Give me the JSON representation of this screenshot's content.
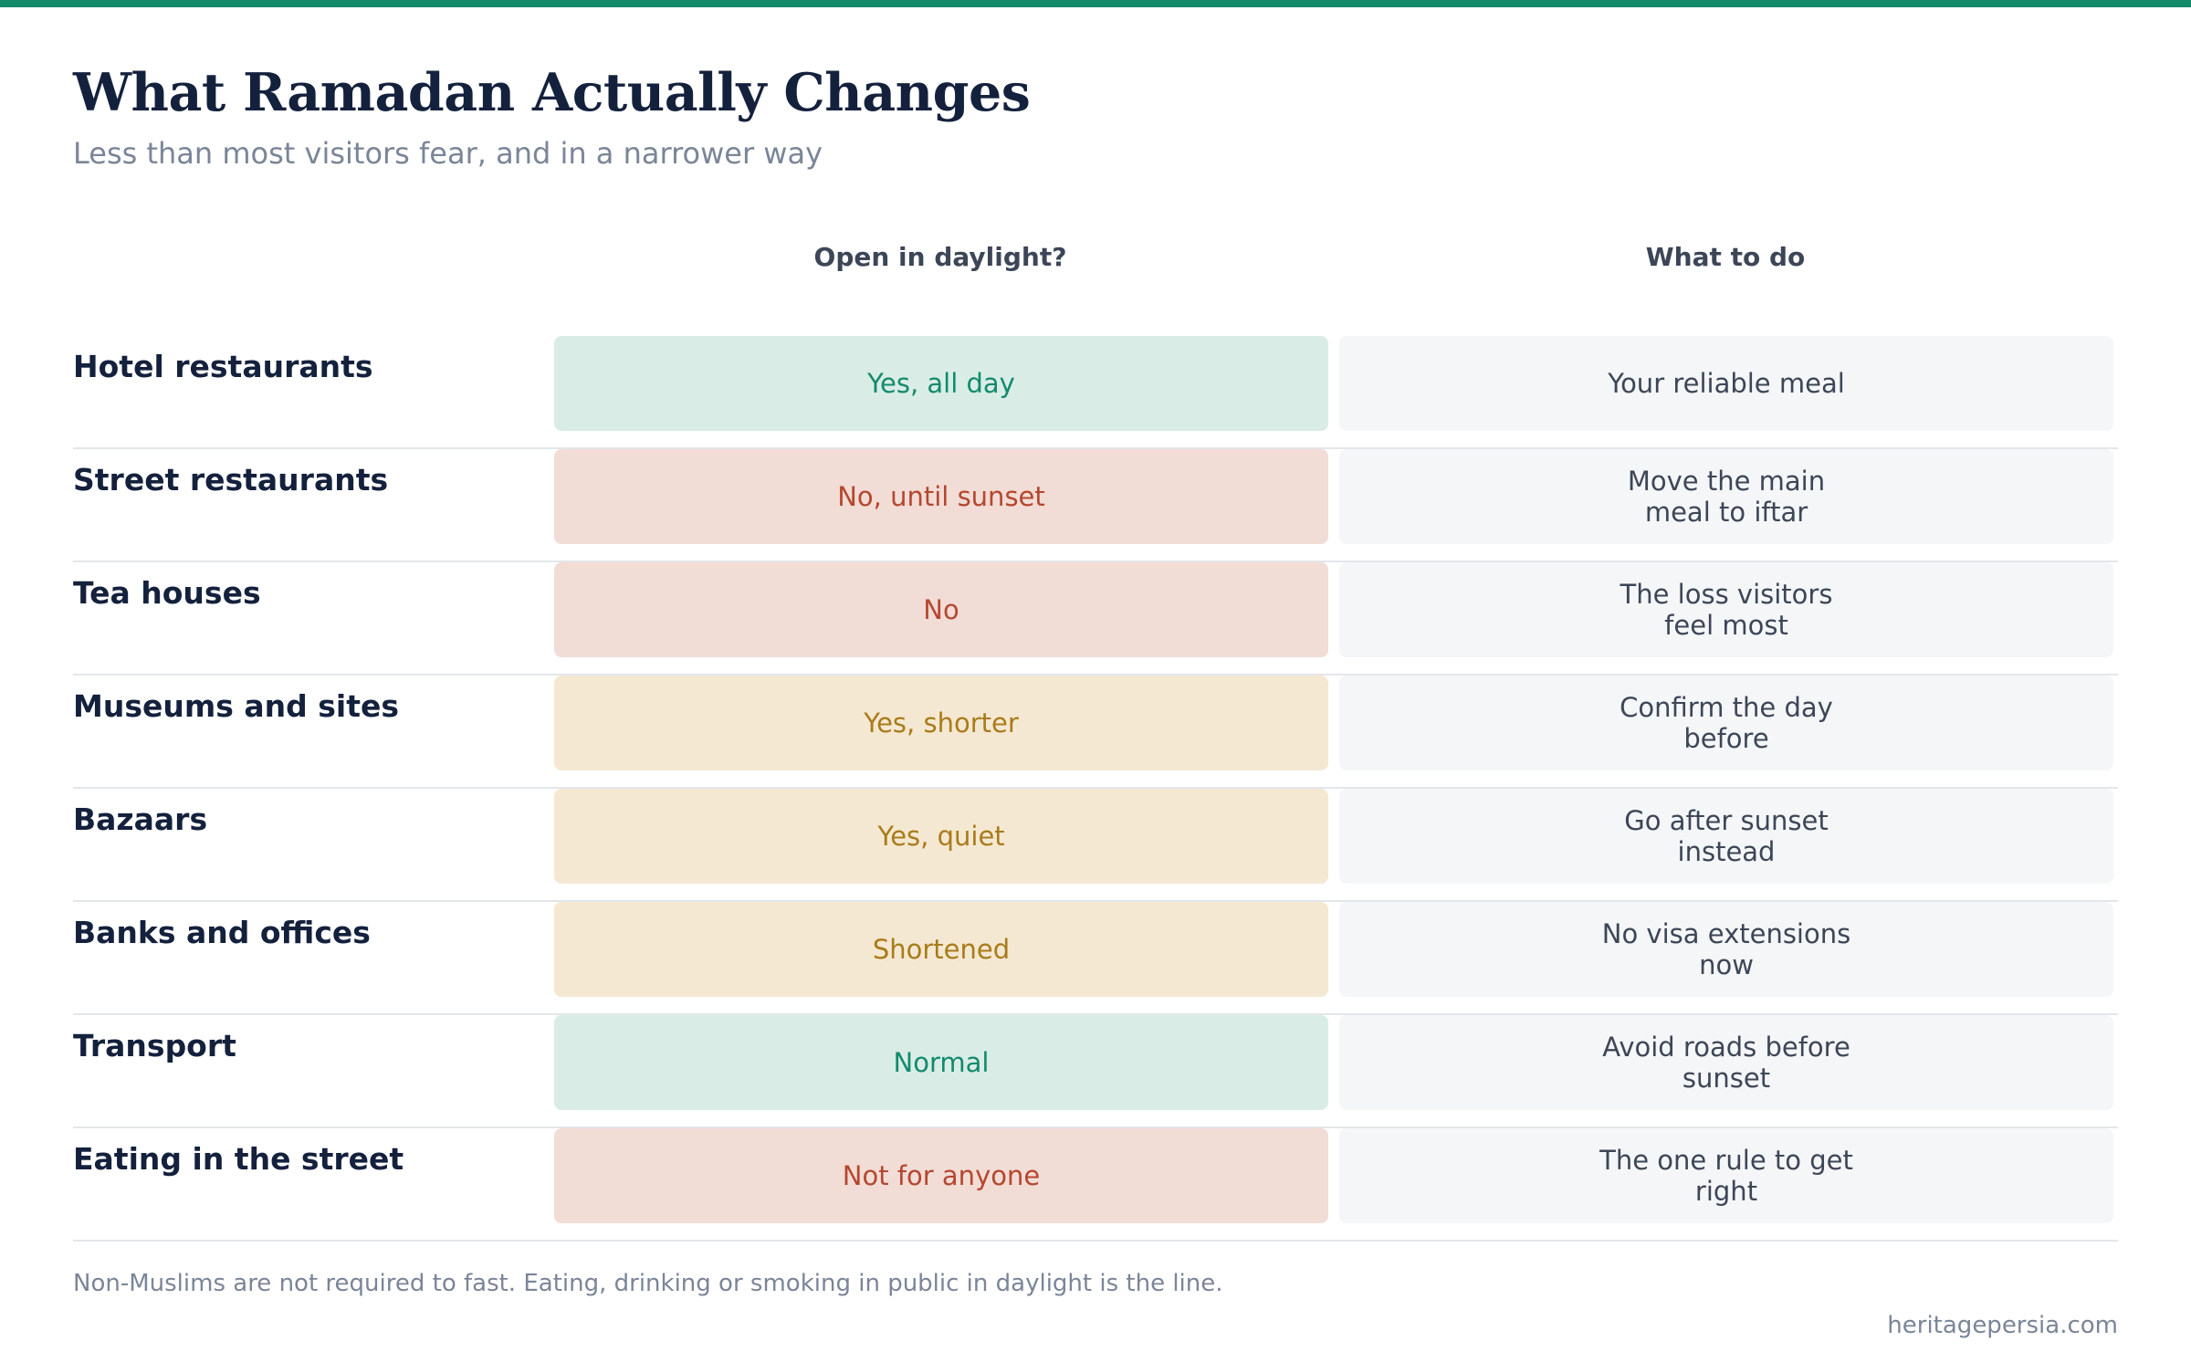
{
  "title": "What Ramadan Actually Changes",
  "subtitle": "Less than most visitors fear, and in a narrower way",
  "colors": {
    "accent_bar": "#138a6c",
    "title": "#14213d",
    "subtitle": "#7b8598",
    "header": "#3d4657",
    "row_label": "#14213d",
    "advice_text": "#3d4657",
    "advice_bg": "#f5f6f8",
    "divider": "#e3e6ea",
    "footnote": "#7b8598",
    "green_bg": "#d9ede6",
    "green_text": "#138a6c",
    "red_bg": "#f2dcd6",
    "red_text": "#b5472f",
    "amber_bg": "#f5e8d2",
    "amber_text": "#a97b1a"
  },
  "chart_data": {
    "type": "table",
    "columns": [
      "",
      "Open in daylight?",
      "What to do"
    ],
    "rows": [
      {
        "label": "Hotel restaurants",
        "status": "Yes, all day",
        "status_level": "green",
        "advice": "Your reliable meal"
      },
      {
        "label": "Street restaurants",
        "status": "No, until sunset",
        "status_level": "red",
        "advice": "Move the main meal to iftar"
      },
      {
        "label": "Tea houses",
        "status": "No",
        "status_level": "red",
        "advice": "The loss visitors feel most"
      },
      {
        "label": "Museums and sites",
        "status": "Yes, shorter",
        "status_level": "amber",
        "advice": "Confirm the day before"
      },
      {
        "label": "Bazaars",
        "status": "Yes, quiet",
        "status_level": "amber",
        "advice": "Go after sunset instead"
      },
      {
        "label": "Banks and offices",
        "status": "Shortened",
        "status_level": "amber",
        "advice": "No visa extensions now"
      },
      {
        "label": "Transport",
        "status": "Normal",
        "status_level": "green",
        "advice": "Avoid roads before sunset"
      },
      {
        "label": "Eating in the street",
        "status": "Not for anyone",
        "status_level": "red",
        "advice": "The one rule to get right"
      }
    ]
  },
  "footnote": "Non-Muslims are not required to fast. Eating, drinking or smoking in public in daylight is the line.",
  "source": "heritagepersia.com"
}
